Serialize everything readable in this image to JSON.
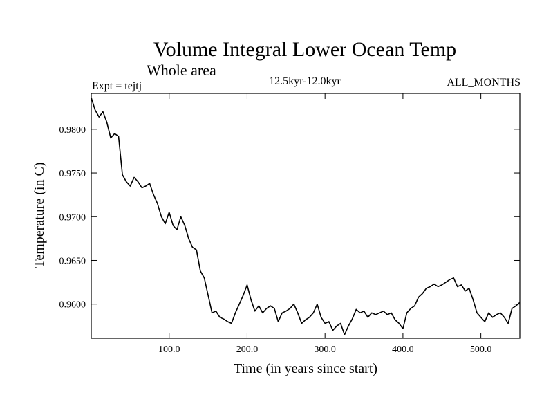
{
  "chart_data": {
    "type": "line",
    "title": "Volume Integral Lower Ocean Temp",
    "subtitle": "Whole area",
    "left_label": "Expt = tejtj",
    "center_label": "12.5kyr-12.0kyr",
    "right_label": "ALL_MONTHS",
    "xlabel": "Time (in years since start)",
    "ylabel": "Temperature (in C)",
    "xlim": [
      0,
      550
    ],
    "ylim": [
      0.9561,
      0.9841
    ],
    "x_ticks": [
      100,
      200,
      300,
      400,
      500
    ],
    "x_tick_labels": [
      "100.0",
      "200.0",
      "300.0",
      "400.0",
      "500.0"
    ],
    "y_ticks": [
      0.96,
      0.965,
      0.97,
      0.975,
      0.98
    ],
    "y_tick_labels": [
      "0.9600",
      "0.9650",
      "0.9700",
      "0.9750",
      "0.9800"
    ],
    "series": [
      {
        "name": "Lower Ocean Temp",
        "x": [
          0,
          5,
          10,
          15,
          20,
          25,
          30,
          35,
          40,
          45,
          50,
          55,
          60,
          65,
          70,
          75,
          80,
          85,
          90,
          95,
          100,
          105,
          110,
          115,
          120,
          125,
          130,
          135,
          140,
          145,
          150,
          155,
          160,
          165,
          170,
          175,
          180,
          185,
          190,
          195,
          200,
          205,
          210,
          215,
          220,
          225,
          230,
          235,
          240,
          245,
          250,
          255,
          260,
          265,
          270,
          275,
          280,
          285,
          290,
          295,
          300,
          305,
          310,
          315,
          320,
          325,
          330,
          335,
          340,
          345,
          350,
          355,
          360,
          365,
          370,
          375,
          380,
          385,
          390,
          395,
          400,
          405,
          410,
          415,
          420,
          425,
          430,
          435,
          440,
          445,
          450,
          455,
          460,
          465,
          470,
          475,
          480,
          485,
          490,
          495,
          500,
          505,
          510,
          515,
          520,
          525,
          530,
          535,
          540,
          545,
          550
        ],
        "values": [
          0.9836,
          0.9822,
          0.9814,
          0.982,
          0.9808,
          0.979,
          0.9795,
          0.9792,
          0.9748,
          0.974,
          0.9735,
          0.9745,
          0.974,
          0.9733,
          0.9735,
          0.9738,
          0.9725,
          0.9715,
          0.97,
          0.9692,
          0.9705,
          0.969,
          0.9685,
          0.97,
          0.969,
          0.9675,
          0.9665,
          0.9662,
          0.9638,
          0.963,
          0.961,
          0.959,
          0.9592,
          0.9585,
          0.9583,
          0.958,
          0.9578,
          0.959,
          0.96,
          0.961,
          0.9622,
          0.9605,
          0.9592,
          0.9598,
          0.959,
          0.9595,
          0.9598,
          0.9595,
          0.958,
          0.959,
          0.9592,
          0.9595,
          0.96,
          0.959,
          0.9578,
          0.9582,
          0.9585,
          0.959,
          0.96,
          0.9585,
          0.9578,
          0.958,
          0.957,
          0.9575,
          0.9578,
          0.9565,
          0.9575,
          0.9583,
          0.9594,
          0.959,
          0.9592,
          0.9585,
          0.959,
          0.9588,
          0.959,
          0.9592,
          0.9588,
          0.959,
          0.9582,
          0.9578,
          0.9572,
          0.959,
          0.9595,
          0.9598,
          0.9608,
          0.9612,
          0.9618,
          0.962,
          0.9623,
          0.962,
          0.9622,
          0.9625,
          0.9628,
          0.963,
          0.962,
          0.9622,
          0.9615,
          0.9618,
          0.9605,
          0.959,
          0.9585,
          0.958,
          0.959,
          0.9585,
          0.9588,
          0.959,
          0.9585,
          0.9578,
          0.9595,
          0.9598,
          0.9602
        ]
      }
    ],
    "grid": false,
    "line_color": "#000000"
  }
}
